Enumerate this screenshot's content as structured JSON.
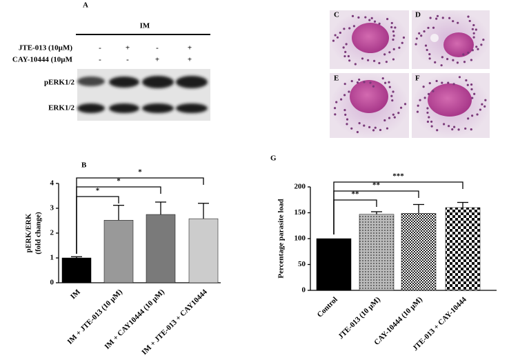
{
  "panel_labels": [
    "A",
    "B",
    "C",
    "D",
    "E",
    "F",
    "G"
  ],
  "blot": {
    "group": "IM",
    "rows": [
      {
        "label": "JTE-013 (10µM)",
        "signs": [
          "-",
          "+",
          "-",
          "+"
        ]
      },
      {
        "label": "CAY-10444 (10µM",
        "signs": [
          "-",
          "-",
          "+",
          "+"
        ]
      }
    ],
    "bands": [
      "pERK1/2",
      "ERK1/2"
    ]
  },
  "chart_data": [
    {
      "type": "bar",
      "y_label": [
        "pERK/ERK",
        "(fold change)"
      ],
      "categories": [
        "IM",
        "IM + JTE-013 (10 µM)",
        "IM + CAY10444 (10 µM)",
        "IM + JTE-013 + CAY10444"
      ],
      "series": [
        {
          "values": [
            1.0,
            2.52,
            2.75,
            2.58
          ],
          "errors": [
            0.05,
            0.6,
            0.5,
            0.62
          ],
          "colors": [
            "#000000",
            "#999999",
            "#7a7a7a",
            "#cccccc"
          ]
        }
      ],
      "ylim": [
        0,
        4
      ],
      "yticks": [
        0,
        1,
        2,
        3,
        4
      ],
      "significance": [
        "*",
        "*",
        "*"
      ]
    },
    {
      "type": "bar",
      "y_label": [
        "Percentage parasite load"
      ],
      "categories": [
        "Control",
        "JTE-013 (10 µM)",
        "CAY-10444 (10 µM)",
        "JTE-013 + CAY-10444"
      ],
      "series": [
        {
          "values": [
            100,
            147,
            149,
            160
          ],
          "errors": [
            0,
            5,
            17,
            10
          ],
          "colors": [
            "#000000",
            "url(#dots)",
            "url(#checker)",
            "url(#checker-large)"
          ]
        }
      ],
      "ylim": [
        0,
        200
      ],
      "yticks": [
        0,
        50,
        100,
        150,
        200
      ],
      "significance": [
        "**",
        "**",
        "***"
      ]
    }
  ]
}
